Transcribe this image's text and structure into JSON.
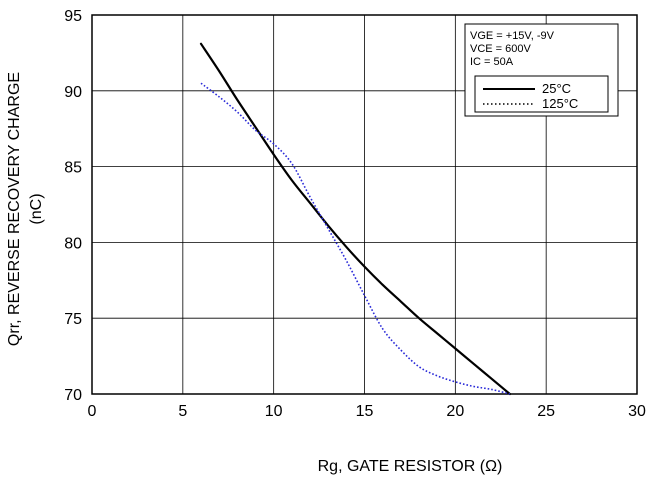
{
  "chart_data": {
    "type": "line",
    "title": "",
    "xlabel": "Rg, GATE RESISTOR (Ω)",
    "ylabel_line1": "Qrr, REVERSE RECOVERY CHARGE",
    "ylabel_line2": "(nC)",
    "xlim": [
      0,
      30
    ],
    "ylim": [
      70,
      95
    ],
    "xticks": [
      0,
      5,
      10,
      15,
      20,
      25,
      30
    ],
    "yticks": [
      70,
      75,
      80,
      85,
      90,
      95
    ],
    "xtick_labels": [
      "0",
      "5",
      "10",
      "15",
      "20",
      "25",
      "30"
    ],
    "ytick_labels": [
      "70",
      "75",
      "80",
      "85",
      "90",
      "95"
    ],
    "grid": true,
    "conditions": [
      "VGE = +15V, -9V",
      "VCE = 600V",
      "IC = 50A"
    ],
    "legend_position": "top-right",
    "series": [
      {
        "name": "25°C",
        "color": "#000000",
        "style": "solid",
        "x": [
          6,
          7,
          8,
          9,
          10,
          11,
          12,
          13,
          14,
          15,
          16,
          17,
          18,
          19,
          20,
          21,
          22,
          23
        ],
        "y": [
          93.1,
          91.3,
          89.4,
          87.6,
          85.8,
          84.1,
          82.6,
          81.1,
          79.7,
          78.4,
          77.2,
          76.1,
          75.0,
          74.0,
          73.0,
          72.0,
          71.0,
          70.0
        ]
      },
      {
        "name": "125°C",
        "color": "#2a2ad8",
        "style": "dotted",
        "x": [
          6,
          7,
          8,
          9,
          10,
          11,
          12,
          13,
          14,
          15,
          16,
          17,
          18,
          19,
          20,
          21,
          22,
          23
        ],
        "y": [
          90.5,
          89.6,
          88.6,
          87.4,
          86.5,
          85.2,
          83.0,
          80.9,
          78.8,
          76.5,
          74.3,
          72.9,
          71.8,
          71.2,
          70.8,
          70.5,
          70.3,
          70.0
        ]
      }
    ]
  }
}
